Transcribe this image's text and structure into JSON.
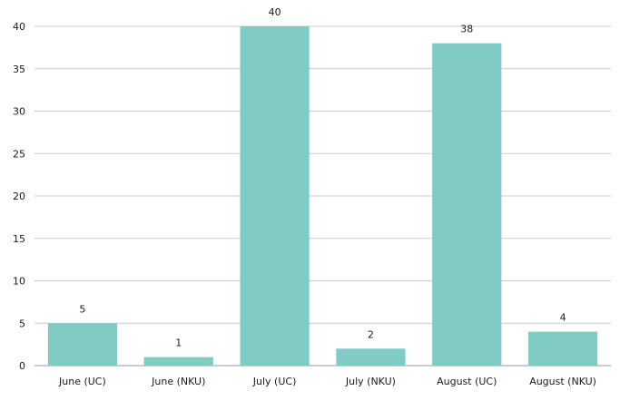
{
  "chart_data": {
    "type": "bar",
    "title": "",
    "xlabel": "",
    "ylabel": "",
    "categories": [
      "June (UC)",
      "June (NKU)",
      "July (UC)",
      "July (NKU)",
      "August (UC)",
      "August (NKU)"
    ],
    "values": [
      5,
      1,
      40,
      2,
      38,
      4
    ],
    "ylim": [
      0,
      40
    ],
    "yticks": [
      0,
      5,
      10,
      15,
      20,
      25,
      30,
      35,
      40
    ],
    "grid": true,
    "legend": "none",
    "data_labels": true,
    "bar_color": "#80cbc4",
    "grid_color": "#cccccc"
  }
}
